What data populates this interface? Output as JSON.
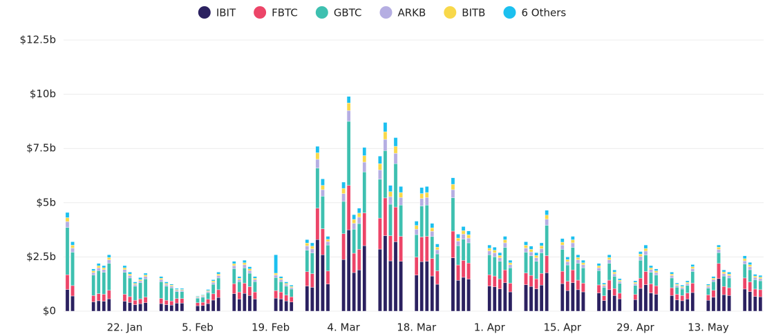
{
  "chart_data": {
    "type": "stacked_bar",
    "categories": [
      "11. Jan",
      "12. Jan",
      "16. Jan",
      "17. Jan",
      "18. Jan",
      "19. Jan",
      "22. Jan",
      "23. Jan",
      "24. Jan",
      "25. Jan",
      "26. Jan",
      "29. Jan",
      "30. Jan",
      "31. Jan",
      "1. Feb",
      "2. Feb",
      "5. Feb",
      "6. Feb",
      "7. Feb",
      "8. Feb",
      "9. Feb",
      "12. Feb",
      "13. Feb",
      "14. Feb",
      "15. Feb",
      "16. Feb",
      "20. Feb",
      "21. Feb",
      "22. Feb",
      "23. Feb",
      "26. Feb",
      "27. Feb",
      "28. Feb",
      "29. Feb",
      "1. Mar",
      "4. Mar",
      "5. Mar",
      "6. Mar",
      "7. Mar",
      "8. Mar",
      "11. Mar",
      "12. Mar",
      "13. Mar",
      "14. Mar",
      "15. Mar",
      "18. Mar",
      "19. Mar",
      "20. Mar",
      "21. Mar",
      "22. Mar",
      "25. Mar",
      "26. Mar",
      "27. Mar",
      "28. Mar",
      "1. Apr",
      "2. Apr",
      "3. Apr",
      "4. Apr",
      "5. Apr",
      "8. Apr",
      "9. Apr",
      "10. Apr",
      "11. Apr",
      "12. Apr",
      "15. Apr",
      "16. Apr",
      "17. Apr",
      "18. Apr",
      "19. Apr",
      "22. Apr",
      "23. Apr",
      "24. Apr",
      "25. Apr",
      "26. Apr",
      "29. Apr",
      "30. Apr",
      "1. May",
      "2. May",
      "3. May",
      "6. May",
      "7. May",
      "8. May",
      "9. May",
      "10. May",
      "13. May",
      "14. May",
      "15. May",
      "16. May",
      "17. May",
      "20. May",
      "21. May",
      "22. May",
      "23. May"
    ],
    "series": [
      {
        "name": "IBIT",
        "color": "#2b2160",
        "values": [
          1.0,
          0.7,
          0.43,
          0.48,
          0.46,
          0.57,
          0.46,
          0.4,
          0.3,
          0.34,
          0.39,
          0.35,
          0.3,
          0.28,
          0.37,
          0.37,
          0.25,
          0.26,
          0.35,
          0.51,
          0.63,
          0.81,
          0.56,
          0.82,
          0.72,
          0.56,
          0.6,
          0.56,
          0.47,
          0.42,
          1.16,
          1.1,
          3.3,
          2.6,
          1.25,
          2.38,
          3.75,
          1.78,
          1.9,
          3.02,
          2.86,
          3.48,
          2.32,
          3.2,
          2.3,
          1.66,
          2.28,
          2.3,
          1.62,
          1.24,
          2.46,
          1.42,
          1.56,
          1.48,
          1.16,
          1.12,
          1.03,
          1.31,
          0.89,
          1.22,
          1.14,
          1.03,
          1.2,
          1.77,
          1.27,
          0.95,
          1.31,
          0.99,
          0.89,
          0.84,
          0.49,
          0.99,
          0.72,
          0.57,
          0.53,
          1.05,
          1.22,
          0.84,
          0.78,
          0.72,
          0.52,
          0.48,
          0.56,
          0.86,
          0.5,
          0.64,
          1.5,
          0.76,
          0.72,
          1.02,
          0.9,
          0.68,
          0.66
        ]
      },
      {
        "name": "FBTC",
        "color": "#ec4568",
        "values": [
          0.68,
          0.48,
          0.29,
          0.33,
          0.32,
          0.39,
          0.32,
          0.27,
          0.2,
          0.23,
          0.26,
          0.24,
          0.2,
          0.19,
          0.21,
          0.21,
          0.14,
          0.15,
          0.2,
          0.29,
          0.36,
          0.46,
          0.32,
          0.47,
          0.41,
          0.32,
          0.35,
          0.32,
          0.27,
          0.24,
          0.66,
          0.63,
          1.45,
          1.2,
          0.6,
          1.19,
          2.05,
          0.89,
          0.95,
          1.51,
          1.43,
          1.74,
          1.16,
          1.6,
          1.15,
          0.83,
          1.14,
          1.15,
          0.81,
          0.62,
          1.23,
          0.71,
          0.78,
          0.74,
          0.52,
          0.5,
          0.46,
          0.59,
          0.4,
          0.54,
          0.51,
          0.46,
          0.54,
          0.79,
          0.57,
          0.43,
          0.59,
          0.44,
          0.4,
          0.37,
          0.22,
          0.44,
          0.32,
          0.26,
          0.24,
          0.47,
          0.61,
          0.42,
          0.39,
          0.36,
          0.26,
          0.24,
          0.28,
          0.43,
          0.25,
          0.32,
          0.7,
          0.38,
          0.36,
          0.51,
          0.45,
          0.34,
          0.33
        ]
      },
      {
        "name": "GBTC",
        "color": "#3ec0b0",
        "values": [
          2.18,
          1.54,
          0.94,
          1.06,
          1.01,
          1.25,
          1.01,
          0.86,
          0.65,
          0.74,
          0.84,
          0.77,
          0.65,
          0.6,
          0.32,
          0.32,
          0.21,
          0.23,
          0.3,
          0.44,
          0.54,
          0.69,
          0.48,
          0.71,
          0.62,
          0.48,
          0.6,
          0.48,
          0.41,
          0.36,
          0.99,
          0.95,
          1.85,
          1.5,
          1.2,
          1.49,
          2.95,
          1.11,
          1.19,
          1.89,
          1.79,
          2.18,
          1.45,
          2.0,
          1.44,
          1.04,
          1.43,
          1.44,
          1.01,
          0.78,
          1.54,
          0.89,
          0.98,
          0.93,
          0.92,
          0.89,
          0.81,
          1.04,
          0.71,
          0.96,
          0.9,
          0.81,
          0.95,
          1.4,
          1.01,
          0.75,
          1.04,
          0.78,
          0.71,
          0.66,
          0.39,
          0.78,
          0.57,
          0.45,
          0.42,
          0.83,
          0.76,
          0.53,
          0.49,
          0.45,
          0.33,
          0.3,
          0.35,
          0.54,
          0.31,
          0.4,
          0.5,
          0.48,
          0.45,
          0.64,
          0.56,
          0.43,
          0.41
        ]
      },
      {
        "name": "ARKB",
        "color": "#b5aee2",
        "values": [
          0.27,
          0.19,
          0.12,
          0.13,
          0.13,
          0.16,
          0.13,
          0.11,
          0.08,
          0.09,
          0.11,
          0.1,
          0.08,
          0.08,
          0.06,
          0.06,
          0.04,
          0.05,
          0.06,
          0.09,
          0.11,
          0.14,
          0.1,
          0.14,
          0.12,
          0.1,
          0.12,
          0.1,
          0.08,
          0.07,
          0.2,
          0.19,
          0.4,
          0.3,
          0.16,
          0.36,
          0.5,
          0.27,
          0.29,
          0.45,
          0.43,
          0.52,
          0.35,
          0.48,
          0.35,
          0.25,
          0.34,
          0.35,
          0.24,
          0.19,
          0.37,
          0.21,
          0.23,
          0.22,
          0.18,
          0.18,
          0.16,
          0.21,
          0.14,
          0.19,
          0.18,
          0.16,
          0.19,
          0.28,
          0.2,
          0.15,
          0.21,
          0.16,
          0.14,
          0.13,
          0.08,
          0.16,
          0.11,
          0.09,
          0.08,
          0.17,
          0.18,
          0.13,
          0.12,
          0.11,
          0.08,
          0.07,
          0.08,
          0.13,
          0.08,
          0.1,
          0.15,
          0.11,
          0.11,
          0.15,
          0.14,
          0.1,
          0.1
        ]
      },
      {
        "name": "BITB",
        "color": "#f8d84a",
        "values": [
          0.18,
          0.13,
          0.08,
          0.09,
          0.08,
          0.1,
          0.08,
          0.07,
          0.05,
          0.06,
          0.07,
          0.06,
          0.05,
          0.05,
          0.04,
          0.04,
          0.03,
          0.03,
          0.04,
          0.06,
          0.07,
          0.09,
          0.06,
          0.09,
          0.08,
          0.06,
          0.08,
          0.06,
          0.05,
          0.05,
          0.13,
          0.13,
          0.3,
          0.2,
          0.1,
          0.24,
          0.35,
          0.18,
          0.19,
          0.3,
          0.29,
          0.35,
          0.23,
          0.32,
          0.23,
          0.17,
          0.23,
          0.23,
          0.16,
          0.12,
          0.25,
          0.14,
          0.16,
          0.15,
          0.12,
          0.12,
          0.11,
          0.14,
          0.09,
          0.13,
          0.12,
          0.11,
          0.13,
          0.19,
          0.13,
          0.1,
          0.14,
          0.1,
          0.09,
          0.09,
          0.05,
          0.1,
          0.08,
          0.06,
          0.06,
          0.11,
          0.12,
          0.08,
          0.08,
          0.07,
          0.05,
          0.05,
          0.06,
          0.09,
          0.05,
          0.06,
          0.1,
          0.08,
          0.07,
          0.1,
          0.09,
          0.07,
          0.07
        ]
      },
      {
        "name": "6 Others",
        "color": "#1cc0ef",
        "values": [
          0.24,
          0.16,
          0.09,
          0.11,
          0.1,
          0.13,
          0.1,
          0.09,
          0.07,
          0.09,
          0.08,
          0.08,
          0.07,
          0.05,
          0.05,
          0.05,
          0.03,
          0.03,
          0.05,
          0.06,
          0.09,
          0.11,
          0.08,
          0.12,
          0.1,
          0.08,
          0.85,
          0.08,
          0.07,
          0.06,
          0.16,
          0.15,
          0.3,
          0.3,
          0.14,
          0.29,
          0.3,
          0.22,
          0.23,
          0.38,
          0.35,
          0.43,
          0.29,
          0.4,
          0.28,
          0.2,
          0.28,
          0.28,
          0.21,
          0.15,
          0.3,
          0.18,
          0.19,
          0.18,
          0.15,
          0.14,
          0.13,
          0.16,
          0.12,
          0.16,
          0.15,
          0.13,
          0.14,
          0.22,
          0.17,
          0.12,
          0.16,
          0.13,
          0.12,
          0.11,
          0.07,
          0.13,
          0.1,
          0.07,
          0.07,
          0.12,
          0.16,
          0.1,
          0.09,
          0.09,
          0.06,
          0.06,
          0.07,
          0.1,
          0.06,
          0.08,
          0.1,
          0.09,
          0.09,
          0.13,
          0.11,
          0.08,
          0.08
        ]
      }
    ],
    "ylim": [
      0,
      12.5
    ],
    "yticks": [
      {
        "value": 0,
        "label": "$0"
      },
      {
        "value": 2.5,
        "label": "$2.5b"
      },
      {
        "value": 5,
        "label": "$5b"
      },
      {
        "value": 7.5,
        "label": "$7.5b"
      },
      {
        "value": 10,
        "label": "$10b"
      },
      {
        "value": 12.5,
        "label": "$12.5b"
      }
    ],
    "xticks": [
      "22. Jan",
      "5. Feb",
      "19. Feb",
      "4. Mar",
      "18. Mar",
      "1. Apr",
      "15. Apr",
      "29. Apr",
      "13. May"
    ],
    "grid": true,
    "legend": "top"
  }
}
